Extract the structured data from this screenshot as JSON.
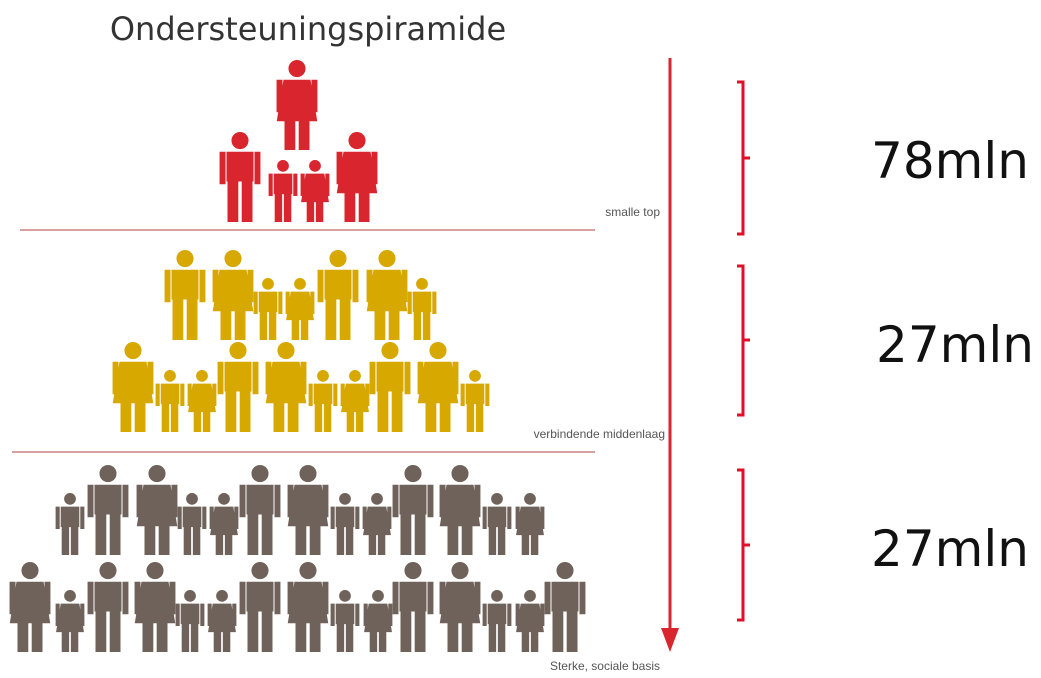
{
  "title": "Ondersteuningspiramide",
  "tiers": [
    {
      "label": "smalle top",
      "amount": "78mln"
    },
    {
      "label": "verbindende middenlaag",
      "amount": "27mln"
    },
    {
      "label": "Sterke, sociale basis",
      "amount": "27mln"
    }
  ]
}
